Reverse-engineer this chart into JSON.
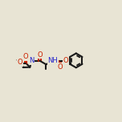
{
  "bg_color": "#e8e4d4",
  "bond_color": "#1a1a1a",
  "o_color": "#cc2200",
  "n_color": "#2020cc",
  "lw": 1.5,
  "dpi": 100,
  "fig_w": 1.52,
  "fig_h": 1.52,
  "xlim": [
    -0.05,
    1.05
  ],
  "ylim": [
    0.28,
    0.78
  ]
}
